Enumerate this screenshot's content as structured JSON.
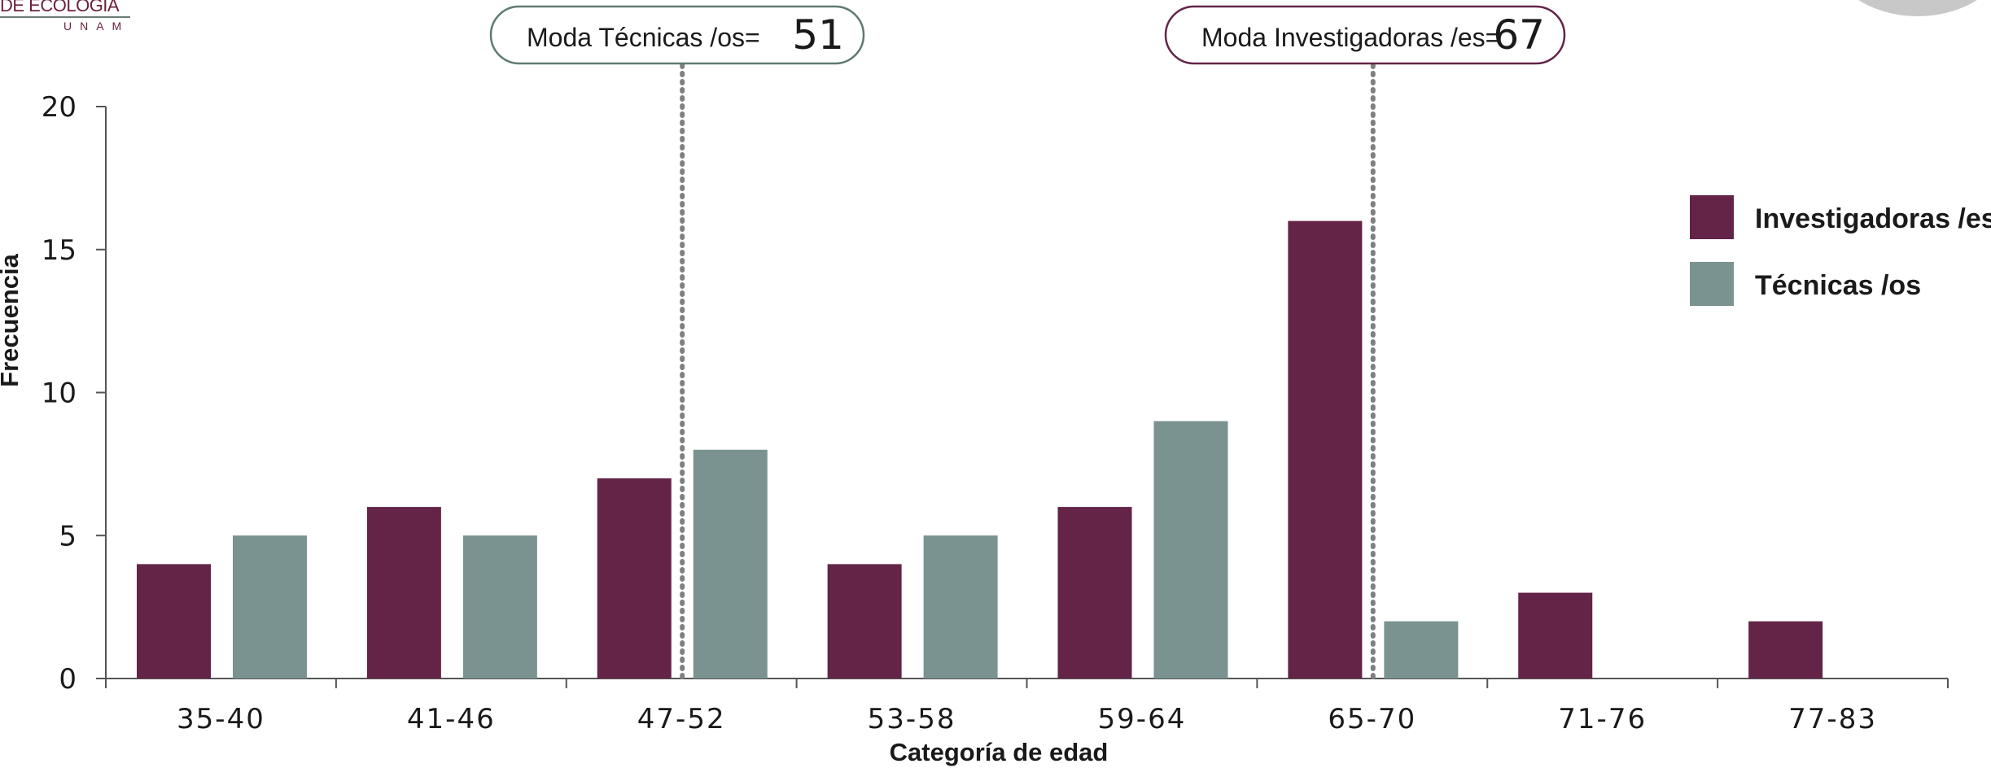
{
  "logo": {
    "line1": "DE ECOLOGÍA",
    "line2": "UNAM"
  },
  "colors": {
    "investigadoras": "#632447",
    "tecnicas": "#7a9390",
    "axis": "#555555",
    "mode_line": "#808080"
  },
  "chart_data": {
    "type": "bar",
    "xlabel": "Categoría de edad",
    "ylabel": "Frecuencia",
    "ylim": [
      0,
      20
    ],
    "yticks": [
      0,
      5,
      10,
      15,
      20
    ],
    "grid": false,
    "legend_position": "right",
    "categories": [
      "35-40",
      "41-46",
      "47-52",
      "53-58",
      "59-64",
      "65-70",
      "71-76",
      "77-83"
    ],
    "series": [
      {
        "name": "Investigadoras /es",
        "color": "#632447",
        "values": [
          4,
          6,
          7,
          4,
          6,
          16,
          3,
          2
        ]
      },
      {
        "name": "Técnicas /os",
        "color": "#7a9390",
        "values": [
          5,
          5,
          8,
          5,
          9,
          2,
          0,
          0
        ]
      }
    ],
    "annotations": [
      {
        "label": "Moda Técnicas /os=",
        "value": "51",
        "age": 51,
        "border_color": "#5f7a72"
      },
      {
        "label": "Moda Investigadoras /es=",
        "value": "67",
        "age": 67,
        "border_color": "#632447"
      }
    ]
  }
}
